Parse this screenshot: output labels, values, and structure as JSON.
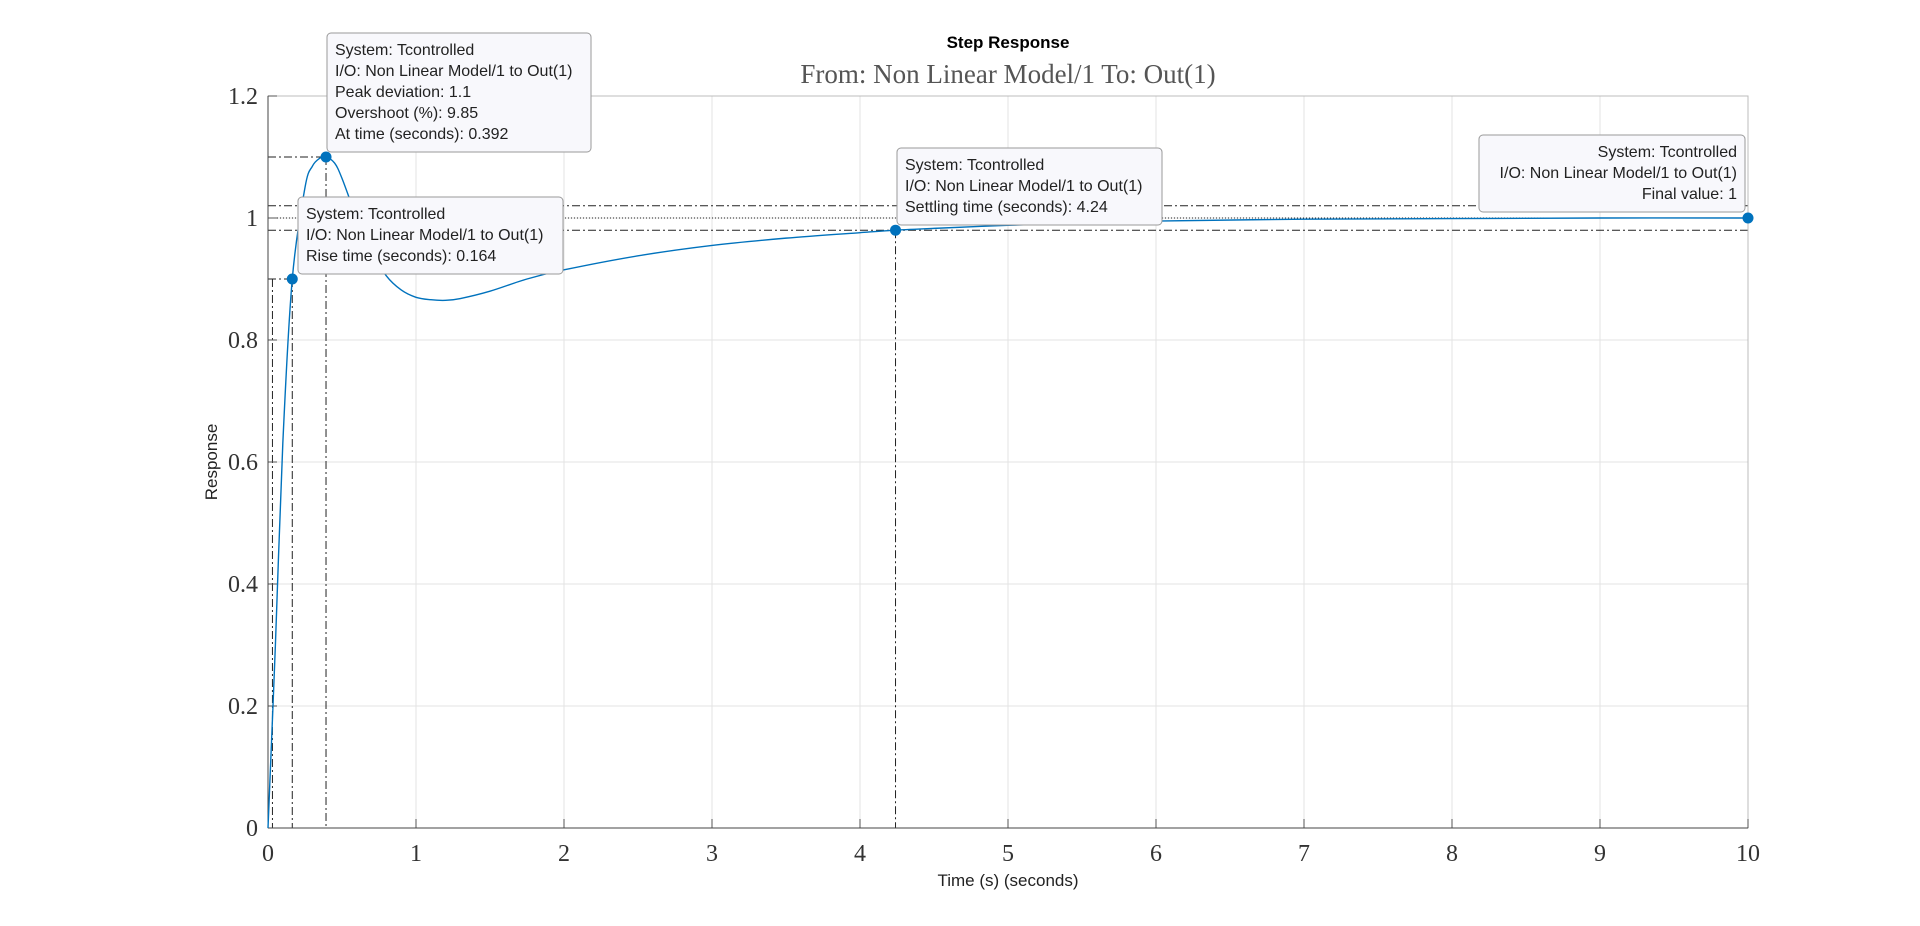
{
  "chart_data": {
    "type": "line",
    "title": "Step Response",
    "subtitle": "From: Non Linear Model/1  To: Out(1)",
    "xlabel": "Time (s) (seconds)",
    "ylabel": "Response",
    "xlim": [
      0,
      10
    ],
    "ylim": [
      0,
      1.2
    ],
    "xticks": [
      0,
      1,
      2,
      3,
      4,
      5,
      6,
      7,
      8,
      9,
      10
    ],
    "yticks": [
      0,
      0.2,
      0.4,
      0.6,
      0.8,
      1,
      1.2
    ],
    "xtick_labels": [
      "0",
      "1",
      "2",
      "3",
      "4",
      "5",
      "6",
      "7",
      "8",
      "9",
      "10"
    ],
    "ytick_labels": [
      "0",
      "0.2",
      "0.4",
      "0.6",
      "0.8",
      "1",
      "1.2"
    ],
    "grid": true,
    "series": [
      {
        "color": "#0072BD",
        "x": [
          0,
          0.05,
          0.1,
          0.164,
          0.25,
          0.3,
          0.35,
          0.392,
          0.45,
          0.5,
          0.6,
          0.7,
          0.8,
          0.9,
          1.0,
          1.1,
          1.2,
          1.3,
          1.5,
          1.75,
          2.0,
          2.5,
          3.0,
          3.5,
          4.0,
          4.24,
          4.5,
          5.0,
          5.5,
          6.0,
          7.0,
          8.0,
          9.0,
          10.0
        ],
        "y": [
          0,
          0.3,
          0.63,
          0.9,
          1.05,
          1.085,
          1.098,
          1.1,
          1.09,
          1.065,
          1.0,
          0.945,
          0.905,
          0.882,
          0.87,
          0.866,
          0.865,
          0.868,
          0.88,
          0.9,
          0.915,
          0.938,
          0.955,
          0.967,
          0.976,
          0.98,
          0.983,
          0.988,
          0.992,
          0.995,
          0.998,
          0.999,
          1.0,
          1.0
        ]
      }
    ],
    "reference_levels": {
      "final_value": 1.0,
      "settling_band": [
        0.98,
        1.02
      ],
      "rise_levels": [
        0.1,
        0.9
      ]
    },
    "datatips": [
      {
        "x": 0.392,
        "y": 1.1,
        "lines": [
          "System: Tcontrolled",
          "I/O: Non Linear Model/1 to Out(1)",
          "Peak deviation: 1.1",
          "Overshoot (%): 9.85",
          "At time (seconds): 0.392"
        ]
      },
      {
        "x": 0.164,
        "y": 0.9,
        "lines": [
          "System: Tcontrolled",
          "I/O: Non Linear Model/1 to Out(1)",
          "Rise time (seconds): 0.164"
        ]
      },
      {
        "x": 4.24,
        "y": 0.98,
        "lines": [
          "System: Tcontrolled",
          "I/O: Non Linear Model/1 to Out(1)",
          "Settling time (seconds): 4.24"
        ]
      },
      {
        "x": 10,
        "y": 1.0,
        "lines": [
          "System: Tcontrolled",
          "I/O: Non Linear Model/1 to Out(1)",
          "Final value: 1"
        ]
      }
    ]
  }
}
